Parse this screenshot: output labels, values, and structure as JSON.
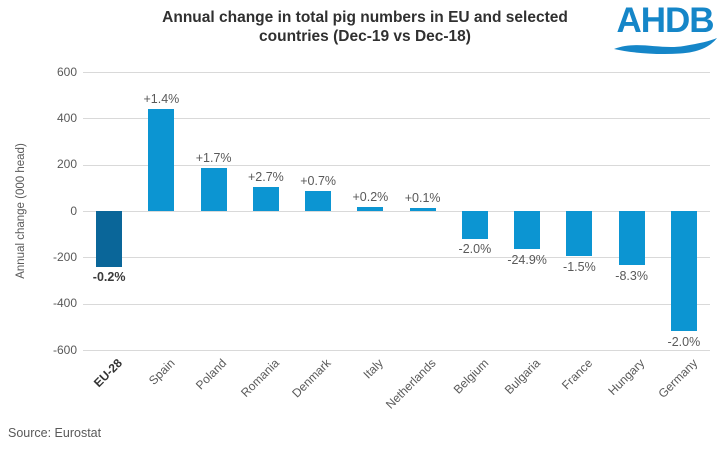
{
  "title": {
    "line1": "Annual change in total pig numbers in EU and selected",
    "line2": "countries (Dec-19 vs Dec-18)"
  },
  "logo": {
    "text": "AHDB",
    "color": "#1586C8"
  },
  "source": {
    "text": "Source: Eurostat"
  },
  "chart_data": {
    "type": "bar",
    "title": "Annual change in total pig numbers in EU and selected countries (Dec-19 vs Dec-18)",
    "ylabel": "Annual change (000 head)",
    "xlabel": "",
    "ylim": [
      -600,
      600
    ],
    "yticks": [
      600,
      400,
      200,
      0,
      -200,
      -400,
      -600
    ],
    "grid": true,
    "legend": "none",
    "categories": [
      "EU-28",
      "Spain",
      "Poland",
      "Romania",
      "Denmark",
      "Italy",
      "Netherlands",
      "Belgium",
      "Bulgaria",
      "France",
      "Hungary",
      "Germany"
    ],
    "values": [
      -240,
      440,
      185,
      105,
      85,
      18,
      12,
      -120,
      -165,
      -195,
      -235,
      -520
    ],
    "point_labels": [
      "-0.2%",
      "+1.4%",
      "+1.7%",
      "+2.7%",
      "+0.7%",
      "+0.2%",
      "+0.1%",
      "-2.0%",
      "-24.9%",
      "-1.5%",
      "-8.3%",
      "-2.0%"
    ],
    "highlight_index": 0,
    "bar_color": "#0C95D2",
    "highlight_color": "#0A6699",
    "grid_color": "#D9D9D9",
    "text_color": "#595959"
  }
}
